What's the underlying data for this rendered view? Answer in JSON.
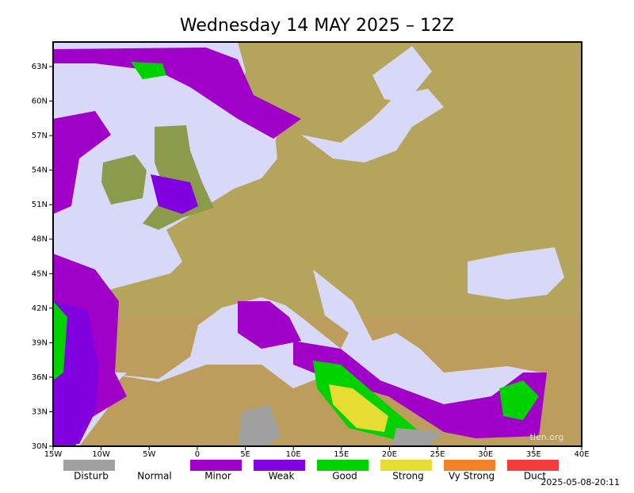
{
  "title": "Wednesday 14 MAY 2025 – 12Z",
  "latitude_labels": [
    "63N",
    "60N",
    "57N",
    "54N",
    "51N",
    "48N",
    "45N",
    "42N",
    "39N",
    "36N",
    "33N",
    "30N"
  ],
  "longitude_labels": [
    "15W",
    "10W",
    "5W",
    "0",
    "5E",
    "10E",
    "15E",
    "20E",
    "25E",
    "30E",
    "35E",
    "40E"
  ],
  "legend": [
    {
      "label": "Disturb",
      "color": "#a0a0a0"
    },
    {
      "label": "Normal",
      "color": "#ffffff"
    },
    {
      "label": "Minor",
      "color": "#a000c8"
    },
    {
      "label": "Weak",
      "color": "#8000e0"
    },
    {
      "label": "Good",
      "color": "#00d200"
    },
    {
      "label": "Strong",
      "color": "#e6dc32"
    },
    {
      "label": "Vy Strong",
      "color": "#f08228"
    },
    {
      "label": "Duct",
      "color": "#f03c3c"
    }
  ],
  "watermark": "tlen.org",
  "timestamp": "2025-05-08-20:11"
}
